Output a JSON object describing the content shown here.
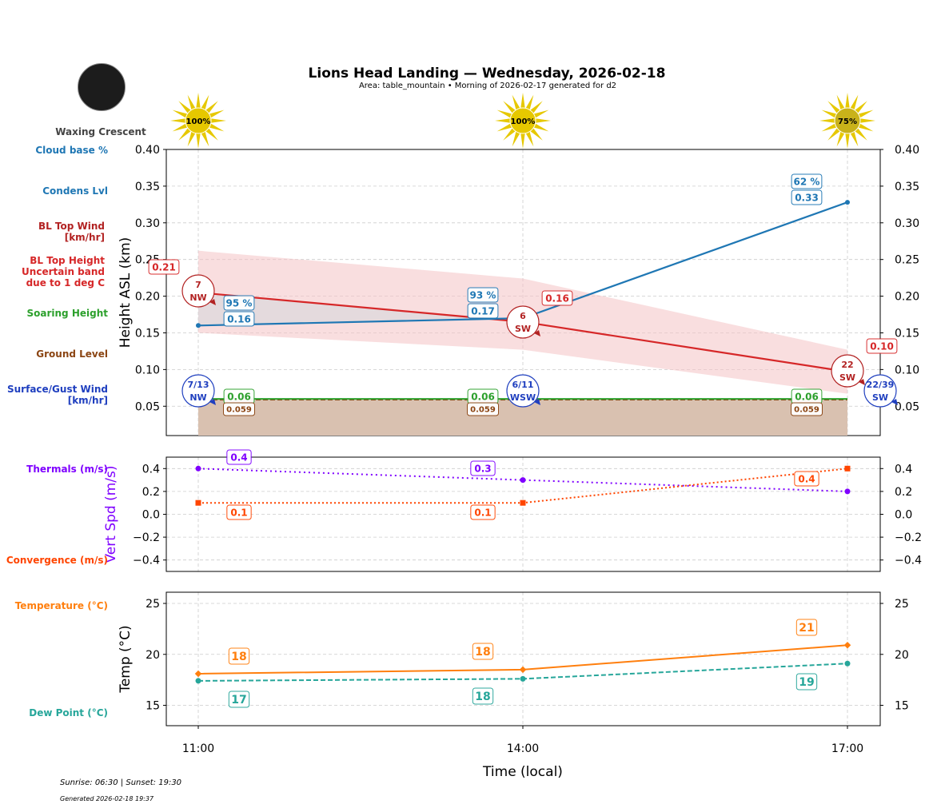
{
  "header": {
    "title": "Lions Head Landing — Wednesday, 2026-02-18",
    "subtitle": "Area: table_mountain • Morning of 2026-02-17 generated for d2"
  },
  "moon": {
    "phase": "Waxing Crescent"
  },
  "footer": {
    "sun": "Sunrise: 06:30 | Sunset: 19:30",
    "generated": "Generated 2026-02-18 19:37"
  },
  "colors": {
    "condens": "#1f77b4",
    "bl_top": "#d62728",
    "bl_wind": "#b22222",
    "band": "#f4c2c4",
    "soaring": "#2ca02c",
    "ground": "#8b4513",
    "surface_wind": "#1f3fbf",
    "thermals": "#7f00ff",
    "convergence": "#ff4500",
    "temp": "#ff7f0e",
    "dew": "#26a69a",
    "sun": "#e6c800"
  },
  "chart_data": [
    {
      "type": "line",
      "ylabel": "Height ASL (km)",
      "ylim": [
        0.01,
        0.4
      ],
      "yticks": [
        "0.05",
        "0.10",
        "0.15",
        "0.20",
        "0.25",
        "0.30",
        "0.35",
        "0.40"
      ],
      "grid": true,
      "x": [
        "11:00",
        "14:00",
        "17:00"
      ],
      "sun_cover": [
        "100%",
        "100%",
        "75%"
      ],
      "row_labels": {
        "cloud_base": "Cloud base %",
        "condens": "Condens Lvl",
        "bl_wind": "BL Top Wind\n[km/hr]",
        "bl_top": "BL Top Height\nUncertain band\ndue to 1 deg C",
        "soaring": "Soaring Height",
        "ground": "Ground Level",
        "surface_wind": "Surface/Gust Wind\n[km/hr]"
      },
      "series": {
        "condens": {
          "values": [
            0.16,
            0.17,
            0.328
          ],
          "labels": [
            "0.16",
            "0.17",
            "0.33"
          ]
        },
        "cloud_base_pct": {
          "labels": [
            "95 %",
            "93 %",
            "62 %"
          ]
        },
        "bl_top": {
          "values": [
            0.205,
            0.165,
            0.097
          ],
          "labels": [
            "0.21",
            "0.16",
            "0.10"
          ]
        },
        "bl_band": {
          "upper": [
            0.262,
            0.224,
            0.127
          ],
          "lower": [
            0.15,
            0.127,
            0.067
          ]
        },
        "soaring": {
          "values": [
            0.06,
            0.06,
            0.06
          ],
          "labels": [
            "0.06",
            "0.06",
            "0.06"
          ]
        },
        "ground": {
          "values": [
            0.059,
            0.059,
            0.059
          ],
          "labels": [
            "0.059",
            "0.059",
            "0.059"
          ]
        },
        "bl_wind": [
          {
            "speed": "7",
            "dir": "NW"
          },
          {
            "speed": "6",
            "dir": "SW"
          },
          {
            "speed": "22",
            "dir": "SW"
          }
        ],
        "surface_wind": [
          {
            "speed": "7/13",
            "dir": "NW"
          },
          {
            "speed": "6/11",
            "dir": "WSW"
          },
          {
            "speed": "22/39",
            "dir": "SW"
          }
        ]
      }
    },
    {
      "type": "line",
      "ylabel": "Vert Spd (m/s)",
      "ylim": [
        -0.5,
        0.5
      ],
      "yticks": [
        "−0.4",
        "−0.2",
        "0.0",
        "0.2",
        "0.4"
      ],
      "grid": true,
      "x": [
        "11:00",
        "14:00",
        "17:00"
      ],
      "row_labels": {
        "thermals": "Thermals (m/s)",
        "convergence": "Convergence (m/s)"
      },
      "series": [
        {
          "key": "thermals",
          "values": [
            0.4,
            0.3,
            0.2
          ],
          "labels": [
            "0.4",
            "0.3",
            ""
          ]
        },
        {
          "key": "convergence",
          "values": [
            0.1,
            0.1,
            0.4
          ],
          "labels": [
            "0.1",
            "0.1",
            "0.4"
          ]
        }
      ]
    },
    {
      "type": "line",
      "ylabel": "Temp (°C)",
      "xlabel": "Time (local)",
      "ylim": [
        13,
        26.1
      ],
      "yticks": [
        "15",
        "20",
        "25"
      ],
      "grid": true,
      "x": [
        "11:00",
        "14:00",
        "17:00"
      ],
      "row_labels": {
        "temp": "Temperature (°C)",
        "dew": "Dew Point (°C)"
      },
      "series": [
        {
          "key": "temp",
          "values": [
            18.1,
            18.5,
            20.9
          ],
          "labels": [
            "18",
            "18",
            "21"
          ]
        },
        {
          "key": "dew",
          "values": [
            17.4,
            17.6,
            19.1
          ],
          "labels": [
            "17",
            "18",
            "19"
          ]
        }
      ]
    }
  ]
}
